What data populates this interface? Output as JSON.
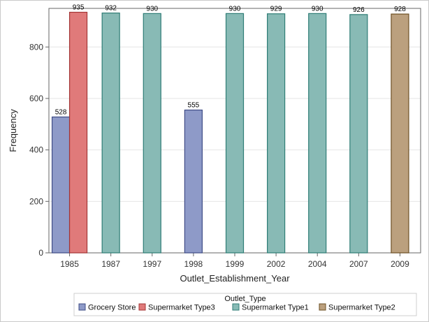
{
  "chart_data": {
    "type": "bar",
    "title": "",
    "xlabel": "Outlet_Establishment_Year",
    "ylabel": "Frequency",
    "ylim": [
      0,
      950
    ],
    "y_ticks": [
      0,
      200,
      400,
      600,
      800
    ],
    "grid": "horizontal",
    "categories": [
      "1985",
      "1987",
      "1997",
      "1998",
      "1999",
      "2002",
      "2004",
      "2007",
      "2009"
    ],
    "legend": {
      "title": "Outlet_Type",
      "placement": "bottom"
    },
    "series": [
      {
        "name": "Grocery Store",
        "color": "#8e9ac8",
        "edge": "#3f4c86",
        "values": [
          528,
          null,
          null,
          555,
          null,
          null,
          null,
          null,
          null
        ]
      },
      {
        "name": "Supermarket Type3",
        "color": "#e07a7a",
        "edge": "#a33535",
        "values": [
          935,
          null,
          null,
          null,
          null,
          null,
          null,
          null,
          null
        ]
      },
      {
        "name": "Supermarket Type1",
        "color": "#88bab5",
        "edge": "#2f7d76",
        "values": [
          null,
          932,
          930,
          null,
          930,
          929,
          930,
          926,
          null
        ]
      },
      {
        "name": "Supermarket Type2",
        "color": "#bba07e",
        "edge": "#6e5024",
        "values": [
          null,
          null,
          null,
          null,
          null,
          null,
          null,
          null,
          928
        ]
      }
    ]
  }
}
